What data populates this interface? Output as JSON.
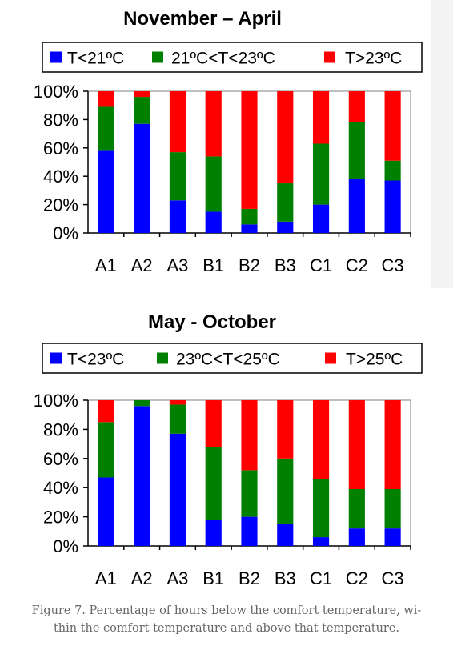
{
  "chart_data": [
    {
      "type": "bar",
      "stacked": true,
      "title": "November – April",
      "categories": [
        "A1",
        "A2",
        "A3",
        "B1",
        "B2",
        "B3",
        "C1",
        "C2",
        "C3"
      ],
      "ylim": [
        0,
        100
      ],
      "yticks": [
        "0%",
        "20%",
        "40%",
        "60%",
        "80%",
        "100%"
      ],
      "legend_placement": "top",
      "series": [
        {
          "name": "T<21ºC",
          "color": "#0000ff",
          "values": [
            58,
            77,
            23,
            15,
            6,
            8,
            20,
            38,
            37
          ]
        },
        {
          "name": "21ºC<T<23ºC",
          "color": "#008000",
          "values": [
            31,
            19,
            34,
            39,
            11,
            27,
            43,
            40,
            14
          ]
        },
        {
          "name": "T>23ºC",
          "color": "#ff0000",
          "values": [
            11,
            4,
            43,
            46,
            83,
            65,
            37,
            22,
            49
          ]
        }
      ]
    },
    {
      "type": "bar",
      "stacked": true,
      "title": "May - October",
      "categories": [
        "A1",
        "A2",
        "A3",
        "B1",
        "B2",
        "B3",
        "C1",
        "C2",
        "C3"
      ],
      "ylim": [
        0,
        100
      ],
      "yticks": [
        "0%",
        "20%",
        "40%",
        "60%",
        "80%",
        "100%"
      ],
      "legend_placement": "top",
      "series": [
        {
          "name": "T<23ºC",
          "color": "#0000ff",
          "values": [
            47,
            96,
            77,
            18,
            20,
            15,
            6,
            12,
            12
          ]
        },
        {
          "name": "23ºC<T<25ºC",
          "color": "#008000",
          "values": [
            38,
            4,
            20,
            50,
            32,
            45,
            40,
            27,
            27
          ]
        },
        {
          "name": "T>25ºC",
          "color": "#ff0000",
          "values": [
            15,
            0,
            3,
            32,
            48,
            40,
            54,
            61,
            61
          ]
        }
      ]
    }
  ],
  "caption": "Figure 7. Percentage of hours below the comfort temperature, within the comfort temperature and above that temperature.",
  "caption_lines": [
    "Figure 7. Percentage of hours below the comfort temperature, wi-",
    "thin the comfort temperature and above that temperature."
  ]
}
